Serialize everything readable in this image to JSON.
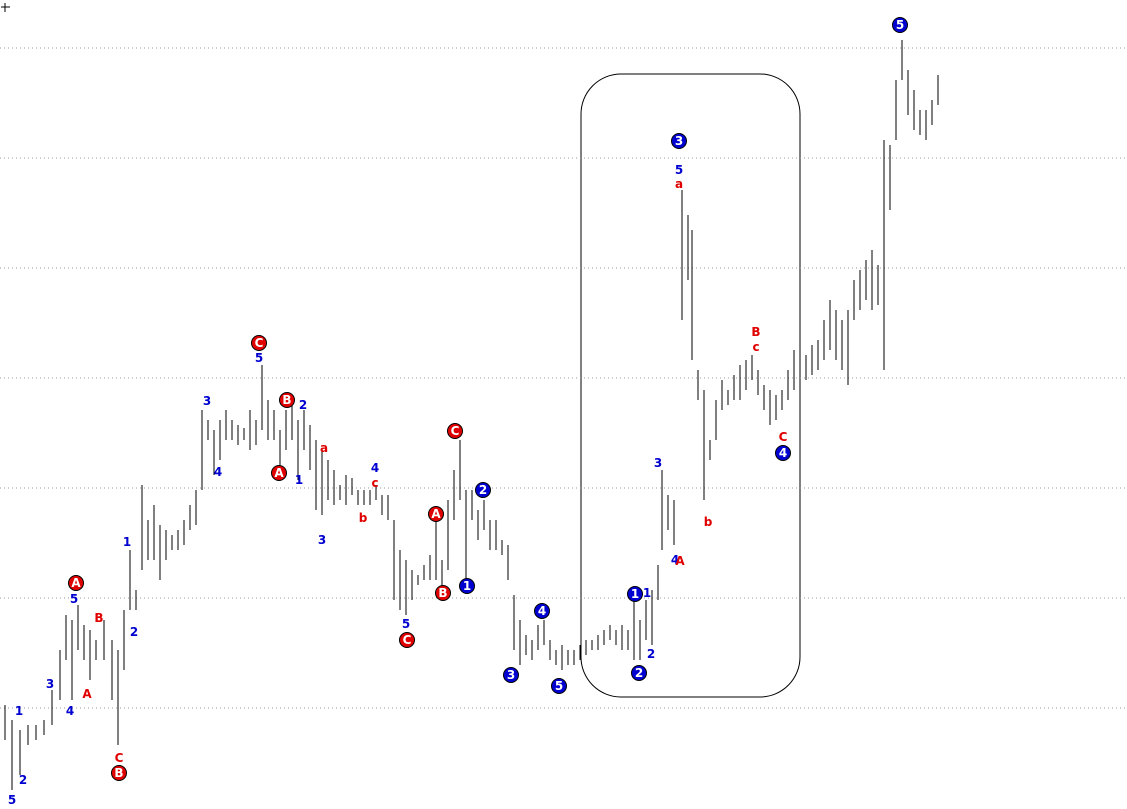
{
  "chart_data": {
    "type": "ohlc",
    "xlim": [
      0,
      1127
    ],
    "ylim": [
      0,
      809
    ],
    "yticks": [
      761,
      651,
      541,
      431,
      321,
      211,
      101
    ],
    "grid": true,
    "bar_color": "#000000",
    "x": [
      5,
      12,
      20,
      28,
      36,
      44,
      52,
      60,
      66,
      72,
      78,
      84,
      90,
      96,
      104,
      112,
      118,
      124,
      130,
      136,
      142,
      148,
      154,
      160,
      166,
      172,
      178,
      184,
      190,
      196,
      202,
      208,
      214,
      220,
      226,
      232,
      238,
      244,
      250,
      256,
      262,
      268,
      274,
      280,
      286,
      292,
      298,
      304,
      310,
      316,
      322,
      328,
      334,
      340,
      346,
      352,
      358,
      364,
      370,
      376,
      382,
      388,
      394,
      400,
      406,
      412,
      418,
      424,
      430,
      436,
      442,
      448,
      454,
      460,
      466,
      472,
      478,
      484,
      490,
      496,
      502,
      508,
      514,
      520,
      526,
      532,
      538,
      544,
      550,
      556,
      562,
      568,
      574,
      580,
      586,
      592,
      598,
      604,
      610,
      616,
      622,
      628,
      634,
      640,
      646,
      652,
      658,
      662,
      668,
      674,
      682,
      688,
      692,
      698,
      704,
      710,
      716,
      722,
      728,
      734,
      740,
      746,
      752,
      758,
      764,
      770,
      776,
      782,
      788,
      794,
      800,
      806,
      812,
      818,
      824,
      830,
      836,
      842,
      848,
      854,
      860,
      866,
      872,
      878,
      884,
      890,
      896,
      902,
      908,
      914,
      920,
      926,
      932,
      938
    ],
    "high": [
      104,
      89,
      79,
      84,
      84,
      89,
      119,
      159,
      194,
      189,
      204,
      184,
      179,
      169,
      189,
      169,
      159,
      199,
      259,
      219,
      324,
      289,
      304,
      284,
      279,
      274,
      279,
      289,
      304,
      319,
      399,
      389,
      379,
      389,
      399,
      389,
      384,
      381,
      399,
      389,
      444,
      409,
      399,
      379,
      399,
      404,
      389,
      399,
      384,
      369,
      359,
      349,
      339,
      324,
      334,
      331,
      319,
      319,
      319,
      324,
      314,
      314,
      289,
      259,
      249,
      239,
      234,
      244,
      254,
      289,
      249,
      309,
      339,
      369,
      319,
      319,
      299,
      309,
      289,
      289,
      269,
      264,
      214,
      189,
      174,
      169,
      184,
      189,
      169,
      159,
      164,
      159,
      159,
      164,
      169,
      169,
      174,
      179,
      184,
      179,
      184,
      179,
      209,
      189,
      209,
      219,
      244,
      339,
      314,
      309,
      619,
      594,
      579,
      439,
      419,
      369,
      409,
      429,
      419,
      434,
      444,
      449,
      454,
      439,
      424,
      419,
      414,
      419,
      439,
      459,
      464,
      454,
      464,
      469,
      489,
      509,
      499,
      489,
      499,
      529,
      539,
      549,
      559,
      544,
      669,
      664,
      729,
      769,
      739,
      719,
      699,
      699,
      709,
      734
    ],
    "low": [
      69,
      19,
      34,
      64,
      69,
      74,
      84,
      109,
      149,
      109,
      159,
      149,
      129,
      149,
      149,
      109,
      64,
      139,
      199,
      199,
      239,
      249,
      249,
      229,
      249,
      259,
      259,
      264,
      279,
      284,
      319,
      369,
      334,
      349,
      369,
      369,
      364,
      369,
      359,
      364,
      379,
      369,
      369,
      344,
      359,
      369,
      329,
      359,
      339,
      299,
      294,
      309,
      304,
      309,
      304,
      314,
      304,
      304,
      304,
      309,
      294,
      289,
      209,
      199,
      194,
      209,
      224,
      229,
      229,
      229,
      219,
      239,
      289,
      309,
      229,
      289,
      269,
      279,
      259,
      259,
      254,
      229,
      159,
      144,
      154,
      149,
      159,
      164,
      149,
      144,
      139,
      144,
      144,
      149,
      154,
      159,
      159,
      164,
      169,
      164,
      159,
      159,
      149,
      149,
      169,
      164,
      209,
      259,
      279,
      264,
      489,
      529,
      449,
      409,
      309,
      349,
      369,
      399,
      404,
      409,
      409,
      419,
      429,
      414,
      399,
      384,
      389,
      399,
      409,
      419,
      434,
      429,
      434,
      439,
      449,
      459,
      449,
      439,
      424,
      489,
      499,
      509,
      499,
      504,
      439,
      599,
      669,
      729,
      694,
      679,
      674,
      669,
      684,
      704
    ],
    "annotations": [
      {
        "text": "A",
        "x": 76,
        "y": 226,
        "style": "red-circle"
      },
      {
        "text": "B",
        "x": 119,
        "y": 36,
        "style": "red-circle"
      },
      {
        "text": "C",
        "x": 259,
        "y": 466,
        "style": "red-circle"
      },
      {
        "text": "B",
        "x": 287,
        "y": 409,
        "style": "red-circle"
      },
      {
        "text": "A",
        "x": 279,
        "y": 336,
        "style": "red-circle"
      },
      {
        "text": "C",
        "x": 455,
        "y": 378,
        "style": "red-circle"
      },
      {
        "text": "A",
        "x": 436,
        "y": 295,
        "style": "red-circle"
      },
      {
        "text": "B",
        "x": 443,
        "y": 216,
        "style": "red-circle"
      },
      {
        "text": "C",
        "x": 407,
        "y": 169,
        "style": "red-circle"
      },
      {
        "text": "1",
        "x": 467,
        "y": 223,
        "style": "blue-circle"
      },
      {
        "text": "2",
        "x": 483,
        "y": 319,
        "style": "blue-circle"
      },
      {
        "text": "3",
        "x": 511,
        "y": 134,
        "style": "blue-circle"
      },
      {
        "text": "4",
        "x": 542,
        "y": 198,
        "style": "blue-circle"
      },
      {
        "text": "5",
        "x": 559,
        "y": 123,
        "style": "blue-circle"
      },
      {
        "text": "1",
        "x": 635,
        "y": 215,
        "style": "blue-circle"
      },
      {
        "text": "2",
        "x": 639,
        "y": 136,
        "style": "blue-circle"
      },
      {
        "text": "3",
        "x": 679,
        "y": 668,
        "style": "blue-circle"
      },
      {
        "text": "4",
        "x": 783,
        "y": 356,
        "style": "blue-circle"
      },
      {
        "text": "5",
        "x": 900,
        "y": 784,
        "style": "blue-circle"
      },
      {
        "text": "1",
        "x": 19,
        "y": 98,
        "style": "blue"
      },
      {
        "text": "2",
        "x": 23,
        "y": 29,
        "style": "blue"
      },
      {
        "text": "5",
        "x": 12,
        "y": 9,
        "style": "blue"
      },
      {
        "text": "3",
        "x": 50,
        "y": 125,
        "style": "blue"
      },
      {
        "text": "4",
        "x": 70,
        "y": 98,
        "style": "blue"
      },
      {
        "text": "5",
        "x": 74,
        "y": 210,
        "style": "blue"
      },
      {
        "text": "1",
        "x": 127,
        "y": 267,
        "style": "blue"
      },
      {
        "text": "2",
        "x": 134,
        "y": 177,
        "style": "blue"
      },
      {
        "text": "3",
        "x": 207,
        "y": 408,
        "style": "blue"
      },
      {
        "text": "4",
        "x": 218,
        "y": 337,
        "style": "blue"
      },
      {
        "text": "5",
        "x": 259,
        "y": 451,
        "style": "blue"
      },
      {
        "text": "2",
        "x": 303,
        "y": 404,
        "style": "blue"
      },
      {
        "text": "1",
        "x": 299,
        "y": 329,
        "style": "blue"
      },
      {
        "text": "3",
        "x": 322,
        "y": 269,
        "style": "blue"
      },
      {
        "text": "4",
        "x": 375,
        "y": 341,
        "style": "blue"
      },
      {
        "text": "5",
        "x": 406,
        "y": 185,
        "style": "blue"
      },
      {
        "text": "3",
        "x": 658,
        "y": 346,
        "style": "blue"
      },
      {
        "text": "5",
        "x": 679,
        "y": 639,
        "style": "blue"
      },
      {
        "text": "4",
        "x": 675,
        "y": 249,
        "style": "blue"
      },
      {
        "text": "1",
        "x": 647,
        "y": 216,
        "style": "blue"
      },
      {
        "text": "2",
        "x": 651,
        "y": 155,
        "style": "blue"
      },
      {
        "text": "B",
        "x": 99,
        "y": 191,
        "style": "red"
      },
      {
        "text": "A",
        "x": 87,
        "y": 115,
        "style": "red"
      },
      {
        "text": "C",
        "x": 119,
        "y": 51,
        "style": "red"
      },
      {
        "text": "a",
        "x": 324,
        "y": 361,
        "style": "red"
      },
      {
        "text": "c",
        "x": 375,
        "y": 326,
        "style": "red"
      },
      {
        "text": "b",
        "x": 363,
        "y": 291,
        "style": "red"
      },
      {
        "text": "a",
        "x": 679,
        "y": 625,
        "style": "red"
      },
      {
        "text": "A",
        "x": 680,
        "y": 248,
        "style": "red"
      },
      {
        "text": "b",
        "x": 708,
        "y": 287,
        "style": "red"
      },
      {
        "text": "B",
        "x": 756,
        "y": 477,
        "style": "red"
      },
      {
        "text": "c",
        "x": 756,
        "y": 462,
        "style": "red"
      },
      {
        "text": "C",
        "x": 783,
        "y": 372,
        "style": "red"
      }
    ]
  }
}
